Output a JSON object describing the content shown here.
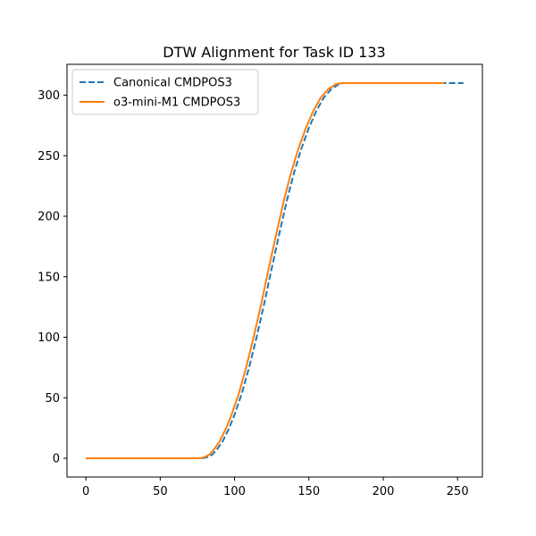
{
  "chart_data": {
    "type": "line",
    "title": "DTW Alignment for Task ID 133",
    "xlabel": "",
    "ylabel": "",
    "xlim": [
      -12.7,
      266.7
    ],
    "ylim": [
      -15.5,
      325.5
    ],
    "xticks": [
      0,
      50,
      100,
      150,
      200,
      250
    ],
    "yticks": [
      0,
      50,
      100,
      150,
      200,
      250,
      300
    ],
    "grid": false,
    "legend_position": "upper-left",
    "series": [
      {
        "name": "Canonical CMDPOS3",
        "color": "#1f77b4",
        "linestyle": "dashed",
        "x": [
          0,
          10,
          20,
          30,
          40,
          50,
          60,
          70,
          78,
          82,
          85,
          88,
          92,
          96,
          100,
          105,
          110,
          115,
          120,
          125,
          130,
          135,
          140,
          145,
          150,
          155,
          160,
          165,
          170,
          173,
          176,
          180,
          190,
          200,
          210,
          220,
          230,
          240,
          250,
          254
        ],
        "y": [
          0,
          0,
          0,
          0,
          0,
          0,
          0,
          0,
          0,
          1,
          3,
          7,
          14,
          24,
          36,
          54,
          76,
          101,
          128,
          157,
          185,
          212,
          236,
          256,
          273,
          287,
          298,
          305,
          309,
          310,
          310,
          310,
          310,
          310,
          310,
          310,
          310,
          310,
          310,
          310
        ]
      },
      {
        "name": "o3-mini-M1 CMDPOS3",
        "color": "#ff7f0e",
        "linestyle": "solid",
        "x": [
          0,
          10,
          20,
          30,
          40,
          50,
          60,
          70,
          77,
          80,
          83,
          86,
          90,
          94,
          98,
          103,
          108,
          113,
          118,
          123,
          128,
          133,
          138,
          143,
          148,
          153,
          158,
          163,
          168,
          172,
          175,
          180,
          190,
          200,
          210,
          220,
          230,
          241
        ],
        "y": [
          0,
          0,
          0,
          0,
          0,
          0,
          0,
          0,
          0,
          1,
          3,
          7,
          14,
          24,
          36,
          54,
          76,
          101,
          128,
          157,
          185,
          212,
          236,
          256,
          273,
          287,
          298,
          305,
          309,
          310,
          310,
          310,
          310,
          310,
          310,
          310,
          310,
          310
        ]
      }
    ]
  }
}
